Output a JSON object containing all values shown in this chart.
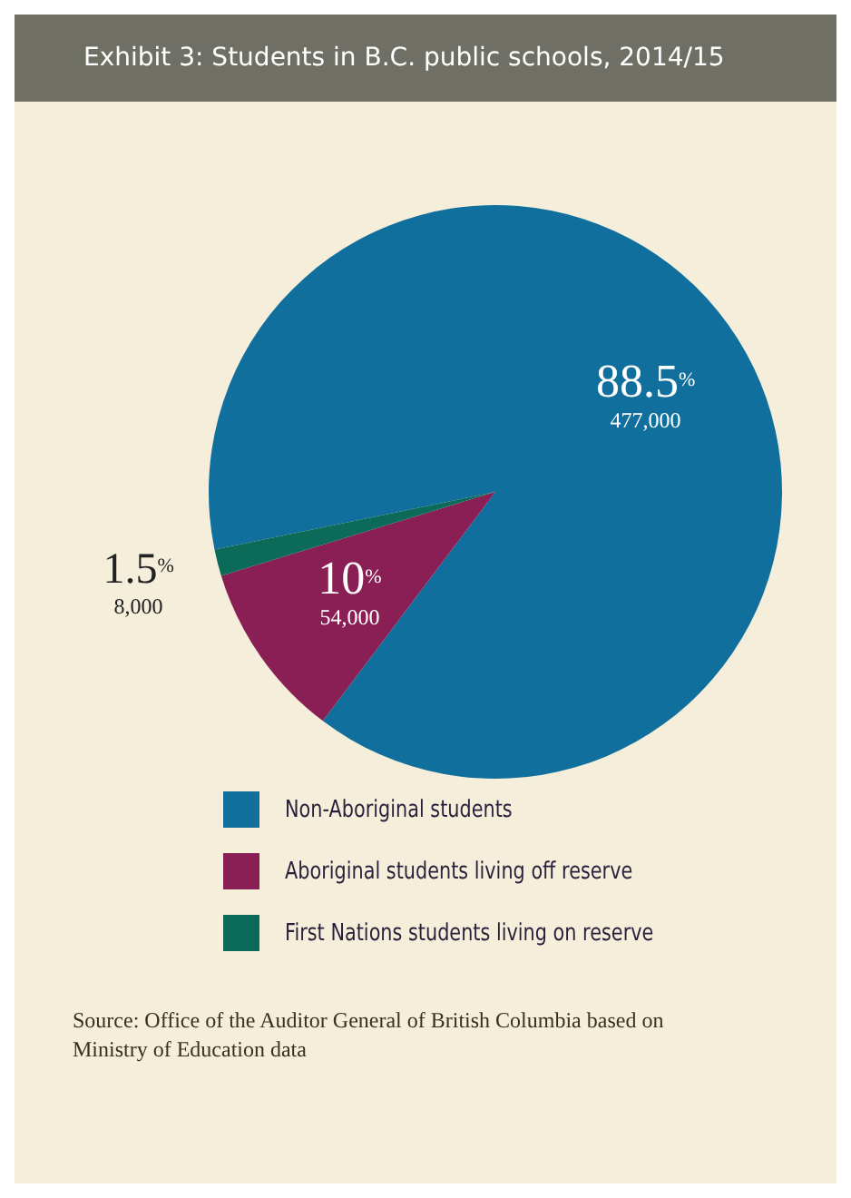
{
  "chart_data": {
    "type": "pie",
    "title": "Exhibit 3: Students in B.C. public schools, 2014/15",
    "categories": [
      "Non-Aboriginal students",
      "Aboriginal students living off reserve",
      "First Nations students living on reserve"
    ],
    "values": [
      88.5,
      10,
      1.5
    ],
    "colors": [
      "#106f9d",
      "#8a1f55",
      "#0c6b58"
    ],
    "value_labels": [
      "88.5$^{%}$",
      "10$^{%}$",
      "1.5$^{%}$"
    ],
    "annotations": [
      "477,000",
      "54,000",
      "8,000",
      "Source: Office of the Auditor General of British Columbia based on Ministry of Education data"
    ],
    "legend": "bottom"
  }
}
